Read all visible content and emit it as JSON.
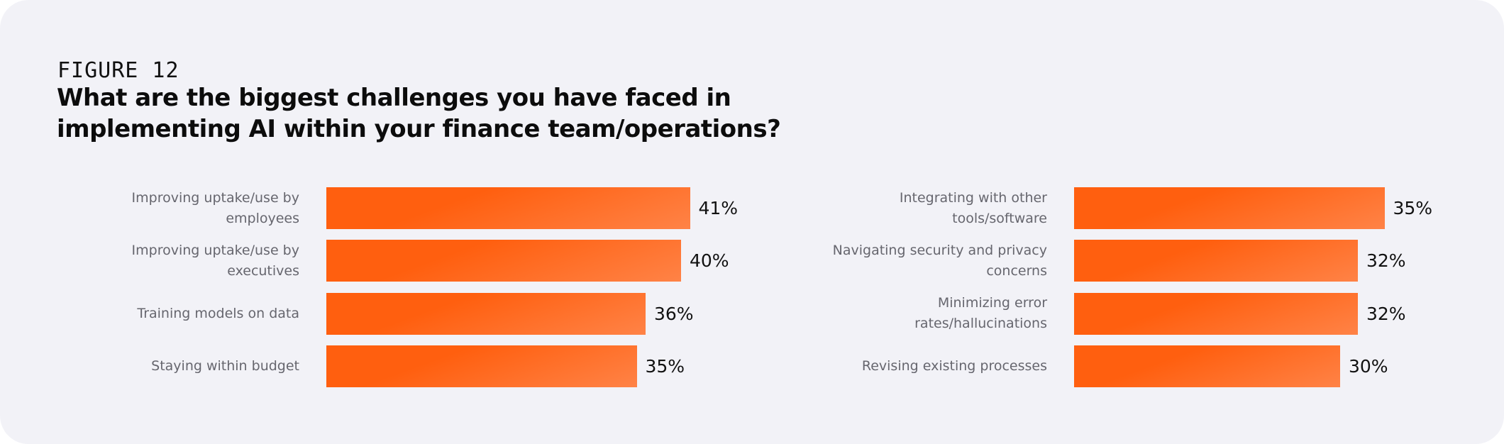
{
  "header": {
    "figure_label": "FIGURE 12",
    "title_lines": [
      "What are the biggest challenges you have faced in",
      "implementing AI within your finance team/operations?"
    ]
  },
  "chart_data": [
    {
      "type": "barh",
      "categories": [
        "Improving uptake/use by employees",
        "Improving uptake/use by executives",
        "Training models on data",
        "Staying within budget"
      ],
      "values": [
        41,
        40,
        36,
        35
      ],
      "value_labels": [
        "41%",
        "40%",
        "36%",
        "35%"
      ],
      "color": "#ff5f0f"
    },
    {
      "type": "barh",
      "categories": [
        "Integrating with other tools/software",
        "Navigating security and privacy concerns",
        "Minimizing error rates/hallucinations",
        "Revising existing processes"
      ],
      "values": [
        35,
        32,
        32,
        30
      ],
      "value_labels": [
        "35%",
        "32%",
        "32%",
        "30%"
      ],
      "color": "#ff5f0f"
    }
  ]
}
